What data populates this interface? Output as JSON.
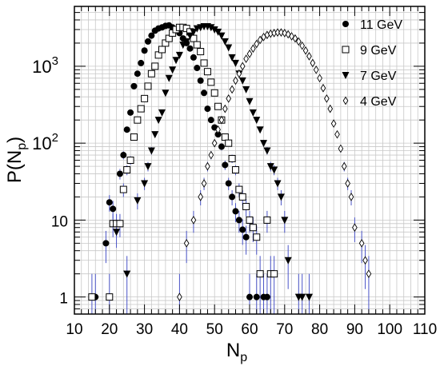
{
  "chart_data": {
    "type": "scatter",
    "title": "",
    "xlabel": "N_p",
    "ylabel": "P(N_p)",
    "xlim": [
      10,
      110
    ],
    "ylim": [
      0.6,
      6000
    ],
    "yscale": "log",
    "grid": true,
    "legend_position": "top-right",
    "x_ticks": [
      "10",
      "20",
      "30",
      "40",
      "50",
      "60",
      "70",
      "80",
      "90",
      "100",
      "110"
    ],
    "y_ticks": [
      {
        "value": 1,
        "label": "1"
      },
      {
        "value": 10,
        "label": "10"
      },
      {
        "value": 100,
        "label": "10",
        "exp": "2"
      },
      {
        "value": 1000,
        "label": "10",
        "exp": "3"
      }
    ],
    "series": [
      {
        "name": "11 GeV",
        "marker": "circle-filled",
        "x": [
          16,
          19,
          20,
          21,
          22,
          23,
          24,
          25,
          26,
          27,
          28,
          29,
          30,
          31,
          32,
          33,
          34,
          35,
          36,
          37,
          38,
          39,
          40,
          41,
          42,
          43,
          44,
          45,
          46,
          47,
          48,
          49,
          50,
          51,
          52,
          53,
          54,
          55,
          56,
          57,
          58,
          59,
          60,
          62,
          64,
          65
        ],
        "y": [
          1,
          5,
          17,
          14,
          9,
          40,
          70,
          150,
          250,
          550,
          800,
          1100,
          1600,
          2100,
          2500,
          2900,
          3100,
          3200,
          3350,
          3400,
          3200,
          3000,
          2700,
          2300,
          2000,
          1700,
          1300,
          950,
          650,
          450,
          280,
          200,
          160,
          130,
          90,
          52,
          30,
          20,
          13,
          10,
          7.5,
          6,
          1,
          1,
          1,
          1
        ]
      },
      {
        "name": "9 GeV",
        "marker": "square-open",
        "x": [
          15,
          20,
          21,
          22,
          23,
          24,
          25,
          26,
          27,
          28,
          29,
          30,
          31,
          32,
          33,
          34,
          35,
          36,
          37,
          38,
          39,
          40,
          41,
          42,
          43,
          44,
          45,
          46,
          47,
          48,
          49,
          50,
          51,
          52,
          53,
          54,
          55,
          56,
          57,
          58,
          59,
          60,
          61,
          62,
          63,
          65,
          66,
          67
        ],
        "y": [
          1,
          1,
          9,
          9,
          9,
          25,
          45,
          60,
          120,
          200,
          280,
          380,
          550,
          800,
          1000,
          1400,
          1650,
          2000,
          2300,
          2700,
          3000,
          3200,
          3200,
          3100,
          2800,
          2300,
          1900,
          1550,
          1100,
          850,
          620,
          450,
          300,
          200,
          120,
          100,
          63,
          45,
          25,
          20,
          15,
          10,
          8,
          6,
          2,
          10,
          2,
          2
        ]
      },
      {
        "name": "7 GeV",
        "marker": "triangle-down-filled",
        "x": [
          22,
          25,
          28,
          30,
          31,
          32,
          33,
          34,
          35,
          36,
          37,
          38,
          39,
          40,
          41,
          42,
          43,
          44,
          45,
          46,
          47,
          48,
          49,
          50,
          51,
          52,
          53,
          54,
          55,
          56,
          57,
          58,
          59,
          60,
          61,
          62,
          63,
          64,
          65,
          66,
          67,
          68,
          69,
          70,
          71,
          74,
          75,
          77
        ],
        "y": [
          7,
          2,
          18,
          30,
          50,
          80,
          130,
          200,
          250,
          450,
          700,
          900,
          1200,
          1400,
          1900,
          2100,
          2500,
          2800,
          3100,
          3200,
          3300,
          3300,
          3200,
          3000,
          2800,
          2500,
          2100,
          1750,
          1300,
          1100,
          800,
          650,
          500,
          350,
          250,
          200,
          150,
          100,
          80,
          50,
          45,
          30,
          20,
          10,
          3,
          1,
          1,
          1
        ]
      },
      {
        "name": "4 GeV",
        "marker": "diamond-open",
        "x": [
          40,
          42,
          44,
          46,
          47,
          48,
          49,
          50,
          51,
          52,
          53,
          54,
          55,
          56,
          57,
          58,
          59,
          60,
          61,
          62,
          63,
          64,
          65,
          66,
          67,
          68,
          69,
          70,
          71,
          72,
          73,
          74,
          75,
          76,
          77,
          78,
          79,
          80,
          81,
          82,
          83,
          84,
          85,
          86,
          87,
          88,
          89,
          90,
          92,
          93,
          94
        ],
        "y": [
          1,
          5,
          10,
          20,
          30,
          50,
          70,
          100,
          150,
          200,
          280,
          380,
          500,
          650,
          800,
          1000,
          1250,
          1450,
          1700,
          1950,
          2200,
          2400,
          2550,
          2650,
          2700,
          2750,
          2750,
          2700,
          2600,
          2450,
          2300,
          2100,
          1850,
          1600,
          1350,
          1100,
          900,
          700,
          520,
          380,
          280,
          180,
          130,
          85,
          50,
          30,
          20,
          8,
          5,
          3,
          2
        ]
      }
    ]
  }
}
